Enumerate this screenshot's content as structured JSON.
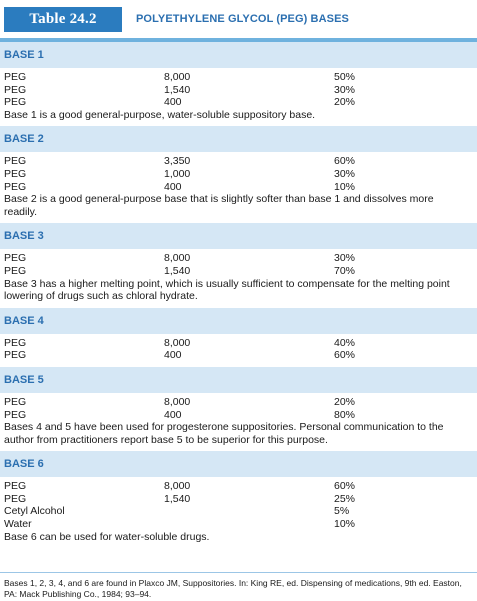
{
  "table": {
    "number": "Table 24.2",
    "title": "POLYETHYLENE GLYCOL (PEG) BASES"
  },
  "bases": [
    {
      "name": "BASE 1",
      "rows": [
        [
          "PEG",
          "8,000",
          "50%"
        ],
        [
          "PEG",
          "1,540",
          "30%"
        ],
        [
          "PEG",
          "400",
          "20%"
        ]
      ],
      "note": "Base 1 is a good general-purpose, water-soluble suppository base."
    },
    {
      "name": "BASE 2",
      "rows": [
        [
          "PEG",
          "3,350",
          "60%"
        ],
        [
          "PEG",
          "1,000",
          "30%"
        ],
        [
          "PEG",
          "400",
          "10%"
        ]
      ],
      "note": "Base 2 is a good general-purpose base that is slightly softer than base 1 and dissolves more readily."
    },
    {
      "name": "BASE 3",
      "rows": [
        [
          "PEG",
          "8,000",
          "30%"
        ],
        [
          "PEG",
          "1,540",
          "70%"
        ]
      ],
      "note": "Base 3 has a higher melting point, which is usually sufficient to compensate for the melting point lowering of drugs such as chloral hydrate."
    },
    {
      "name": "BASE 4",
      "rows": [
        [
          "PEG",
          "8,000",
          "40%"
        ],
        [
          "PEG",
          "400",
          "60%"
        ]
      ],
      "note": ""
    },
    {
      "name": "BASE 5",
      "rows": [
        [
          "PEG",
          "8,000",
          "20%"
        ],
        [
          "PEG",
          "400",
          "80%"
        ]
      ],
      "note": "Bases 4 and 5 have been used for progesterone suppositories. Personal communication to the author from practitioners report base 5 to be superior for this purpose."
    },
    {
      "name": "BASE 6",
      "rows": [
        [
          "PEG",
          "8,000",
          "60%"
        ],
        [
          "PEG",
          "1,540",
          "25%"
        ],
        [
          "Cetyl Alcohol",
          "",
          "5%"
        ],
        [
          "Water",
          "",
          "10%"
        ]
      ],
      "note": "Base 6 can be used for water-soluble drugs."
    }
  ],
  "footnote": "Bases 1, 2, 3, 4, and 6 are found in Plaxco JM, Suppositories. In: King RE, ed. Dispensing of medications, 9th ed. Easton, PA: Mack Publishing Co., 1984; 93–94."
}
